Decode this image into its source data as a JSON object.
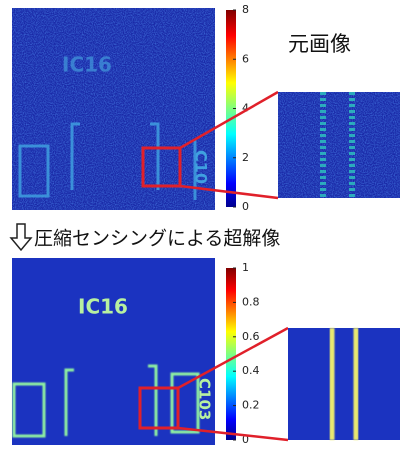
{
  "top": {
    "image_text": [
      "IC16",
      "C10"
    ],
    "colorbar_ticks": [
      0,
      2,
      4,
      6,
      8
    ],
    "label": "元画像"
  },
  "caption": "圧縮センシングによる超解像",
  "bottom": {
    "image_text": [
      "IC16",
      "C103"
    ],
    "colorbar_ticks": [
      0,
      0.2,
      0.4,
      0.6,
      0.8,
      1
    ]
  }
}
